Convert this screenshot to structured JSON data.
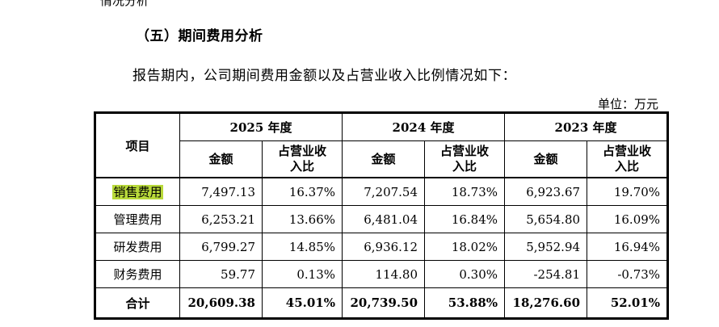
{
  "top_fragment": "情况分析",
  "section_heading": "（五）期间费用分析",
  "intro_text": "报告期内，公司期间费用金额以及占营业收入比例情况如下：",
  "unit_note": "单位：万元",
  "table": {
    "item_header": "项目",
    "years": [
      "2025 年度",
      "2024 年度",
      "2023 年度"
    ],
    "amount_header": "金额",
    "ratio_header_line1": "占营业收",
    "ratio_header_line2": "入比",
    "rows": [
      {
        "label": "销售费用",
        "cells": [
          "7,497.13",
          "16.37%",
          "7,207.54",
          "18.73%",
          "6,923.67",
          "19.70%"
        ]
      },
      {
        "label": "管理费用",
        "cells": [
          "6,253.21",
          "13.66%",
          "6,481.04",
          "16.84%",
          "5,654.80",
          "16.09%"
        ]
      },
      {
        "label": "研发费用",
        "cells": [
          "6,799.27",
          "14.85%",
          "6,936.12",
          "18.02%",
          "5,952.94",
          "16.94%"
        ]
      },
      {
        "label": "财务费用",
        "cells": [
          "59.77",
          "0.13%",
          "114.80",
          "0.30%",
          "-254.81",
          "-0.73%"
        ]
      }
    ],
    "total": {
      "label": "合计",
      "cells": [
        "20,609.38",
        "45.01%",
        "20,739.50",
        "53.88%",
        "18,276.60",
        "52.01%"
      ]
    }
  },
  "highlight_color": "#b8d93a"
}
